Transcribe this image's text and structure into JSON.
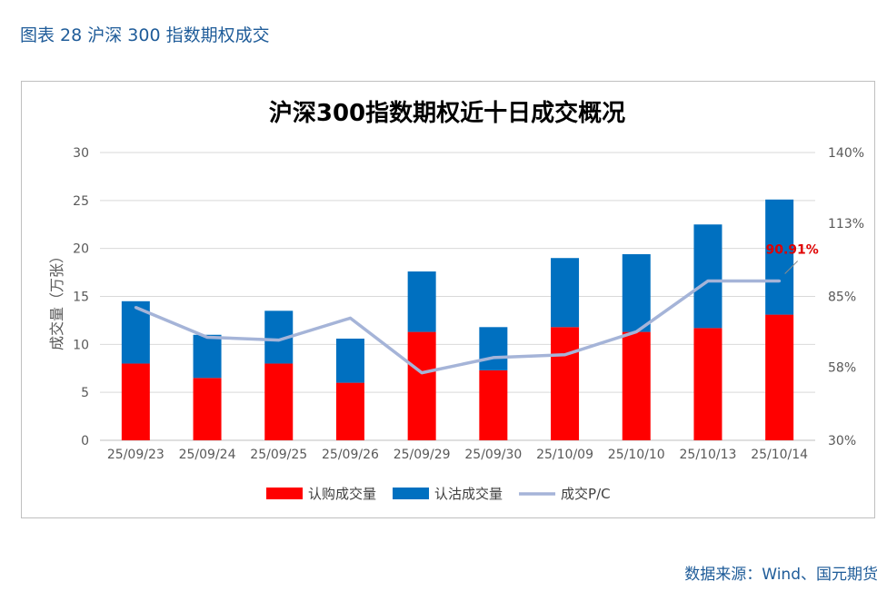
{
  "figure_caption": "图表 28 沪深 300 指数期权成交",
  "source_note": "数据来源：Wind、国元期货",
  "chart_data": {
    "type": "bar",
    "stacked": true,
    "title": "沪深300指数期权近十日成交概况",
    "ylabel": "成交量（万张）",
    "categories": [
      "25/09/23",
      "25/09/24",
      "25/09/25",
      "25/09/26",
      "25/09/29",
      "25/09/30",
      "25/10/09",
      "25/10/10",
      "25/10/13",
      "25/10/14"
    ],
    "ylim": [
      0,
      30
    ],
    "yticks": [
      0,
      5,
      10,
      15,
      20,
      25,
      30
    ],
    "y2lim": [
      30,
      140
    ],
    "y2ticks": [
      "30%",
      "58%",
      "85%",
      "113%",
      "140%"
    ],
    "series": [
      {
        "name": "认购成交量",
        "type": "bar",
        "color": "#FF0000",
        "values": [
          8.0,
          6.5,
          8.0,
          6.0,
          11.3,
          7.3,
          11.8,
          11.3,
          11.7,
          13.1
        ]
      },
      {
        "name": "认沽成交量",
        "type": "bar",
        "color": "#0070C0",
        "values": [
          6.5,
          4.5,
          5.5,
          4.6,
          6.3,
          4.5,
          7.2,
          8.1,
          10.8,
          12.0
        ]
      },
      {
        "name": "成交P/C",
        "type": "line",
        "axis": "right",
        "color": "#A5B4D8",
        "values": [
          80.8,
          69.4,
          68.3,
          76.7,
          55.8,
          61.6,
          62.7,
          71.5,
          90.9,
          90.9
        ]
      }
    ],
    "annotation": {
      "text": "90.91%",
      "series": "成交P/C",
      "index": 9,
      "color": "#E00000"
    },
    "legend_position": "bottom"
  }
}
